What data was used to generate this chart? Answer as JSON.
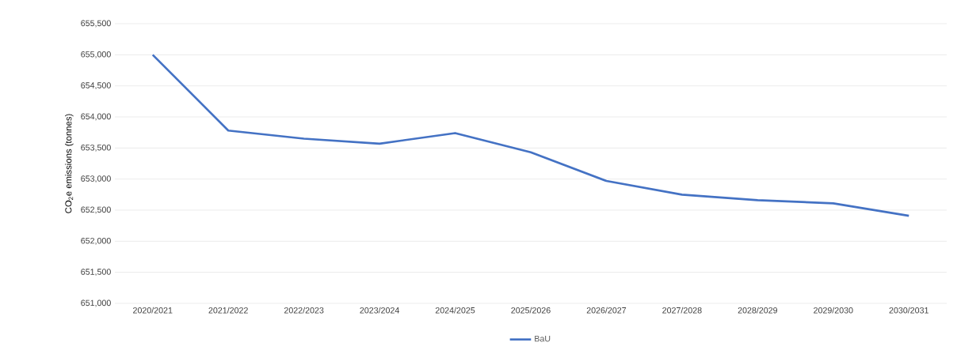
{
  "chart_data": {
    "type": "line",
    "ylabel": "CO$_{2}$e emissions (tonnes)",
    "categories": [
      "2020/2021",
      "2021/2022",
      "2022/2023",
      "2023/2024",
      "2024/2025",
      "2025/2026",
      "2026/2027",
      "2027/2028",
      "2028/2029",
      "2029/2030",
      "2030/2031"
    ],
    "series": [
      {
        "name": "BaU",
        "color": "#4472c4",
        "values": [
          655000,
          653780,
          653650,
          653570,
          653740,
          653430,
          652970,
          652750,
          652660,
          652610,
          652410
        ]
      }
    ],
    "ylim": [
      651000,
      655500
    ],
    "yticks": [
      {
        "value": 651000,
        "label": "651,000"
      },
      {
        "value": 651500,
        "label": "651,500"
      },
      {
        "value": 652000,
        "label": "652,000"
      },
      {
        "value": 652500,
        "label": "652,500"
      },
      {
        "value": 653000,
        "label": "653,000"
      },
      {
        "value": 653500,
        "label": "653,500"
      },
      {
        "value": 654000,
        "label": "654,000"
      },
      {
        "value": 654500,
        "label": "654,500"
      },
      {
        "value": 655000,
        "label": "655,000"
      },
      {
        "value": 655500,
        "label": "655,500"
      }
    ],
    "grid": "y",
    "legend": "bottom",
    "marker": "none",
    "line_style": "solid"
  }
}
